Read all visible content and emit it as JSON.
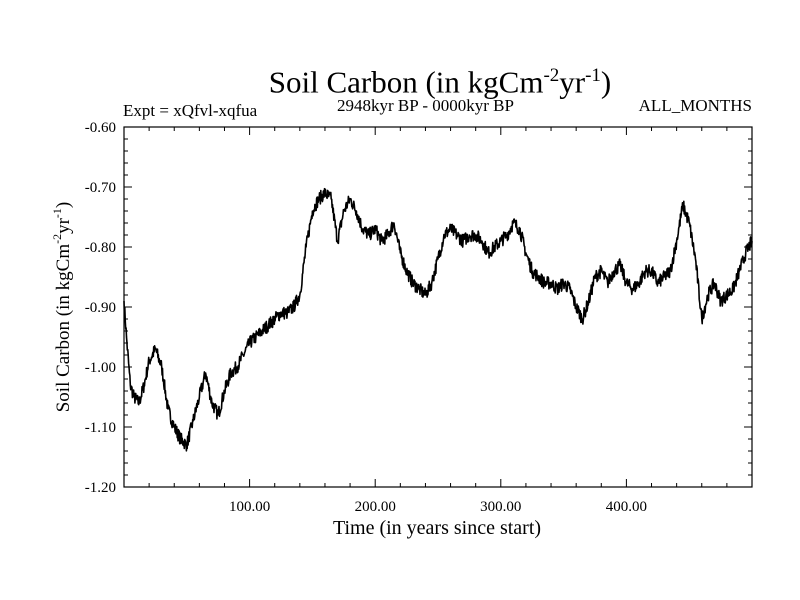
{
  "chart_data": {
    "type": "line",
    "title": "Soil Carbon (in kgCm",
    "title_sup1": "-2",
    "title_mid": "yr",
    "title_sup2": "-1",
    "title_end": ")",
    "subtitle_left": "Expt = xQfvl-xqfua",
    "subtitle_center": "2948kyr BP - 0000kyr BP",
    "subtitle_right": "ALL_MONTHS",
    "xlabel": "Time (in years since start)",
    "ylabel": "Soil Carbon (in kgCm-2yr-1)",
    "ylabel_parts": [
      "Soil Carbon (in kgCm",
      "-2",
      "yr",
      "-1",
      ")"
    ],
    "xlim": [
      0,
      500
    ],
    "ylim": [
      -1.2,
      -0.6
    ],
    "xticks": [
      100,
      200,
      300,
      400
    ],
    "xtick_labels": [
      "100.00",
      "200.00",
      "300.00",
      "400.00"
    ],
    "yticks": [
      -1.2,
      -1.1,
      -1.0,
      -0.9,
      -0.8,
      -0.7,
      -0.6
    ],
    "ytick_labels": [
      "-1.20",
      "-1.10",
      "-1.00",
      "-0.90",
      "-0.80",
      "-0.70",
      "-0.60"
    ],
    "series": [
      {
        "name": "Soil Carbon",
        "x": [
          0,
          2,
          5,
          8,
          12,
          16,
          20,
          25,
          30,
          35,
          40,
          45,
          50,
          55,
          60,
          65,
          70,
          75,
          80,
          85,
          90,
          95,
          100,
          105,
          110,
          115,
          120,
          125,
          130,
          135,
          140,
          145,
          150,
          155,
          160,
          165,
          170,
          175,
          180,
          185,
          190,
          195,
          200,
          205,
          210,
          215,
          220,
          225,
          230,
          235,
          240,
          245,
          250,
          255,
          260,
          265,
          270,
          275,
          280,
          285,
          290,
          295,
          300,
          305,
          310,
          315,
          320,
          325,
          330,
          335,
          340,
          345,
          350,
          355,
          360,
          365,
          370,
          375,
          380,
          385,
          390,
          395,
          400,
          405,
          410,
          415,
          420,
          425,
          430,
          435,
          440,
          445,
          450,
          455,
          460,
          465,
          470,
          475,
          480,
          485,
          490,
          495,
          500
        ],
        "values": [
          -0.89,
          -0.95,
          -1.03,
          -1.05,
          -1.06,
          -1.03,
          -0.99,
          -0.97,
          -1.0,
          -1.07,
          -1.1,
          -1.12,
          -1.13,
          -1.09,
          -1.05,
          -1.01,
          -1.06,
          -1.08,
          -1.04,
          -1.01,
          -1.0,
          -0.98,
          -0.96,
          -0.95,
          -0.94,
          -0.93,
          -0.92,
          -0.91,
          -0.91,
          -0.9,
          -0.88,
          -0.8,
          -0.74,
          -0.72,
          -0.71,
          -0.72,
          -0.79,
          -0.74,
          -0.72,
          -0.74,
          -0.77,
          -0.78,
          -0.77,
          -0.79,
          -0.78,
          -0.76,
          -0.81,
          -0.84,
          -0.86,
          -0.87,
          -0.88,
          -0.86,
          -0.82,
          -0.78,
          -0.77,
          -0.78,
          -0.79,
          -0.78,
          -0.78,
          -0.79,
          -0.81,
          -0.8,
          -0.79,
          -0.78,
          -0.76,
          -0.77,
          -0.81,
          -0.84,
          -0.85,
          -0.86,
          -0.86,
          -0.87,
          -0.86,
          -0.87,
          -0.9,
          -0.92,
          -0.89,
          -0.85,
          -0.84,
          -0.86,
          -0.84,
          -0.83,
          -0.86,
          -0.87,
          -0.86,
          -0.84,
          -0.84,
          -0.86,
          -0.85,
          -0.84,
          -0.79,
          -0.73,
          -0.76,
          -0.82,
          -0.92,
          -0.88,
          -0.86,
          -0.89,
          -0.88,
          -0.87,
          -0.84,
          -0.81,
          -0.79
        ]
      }
    ]
  }
}
